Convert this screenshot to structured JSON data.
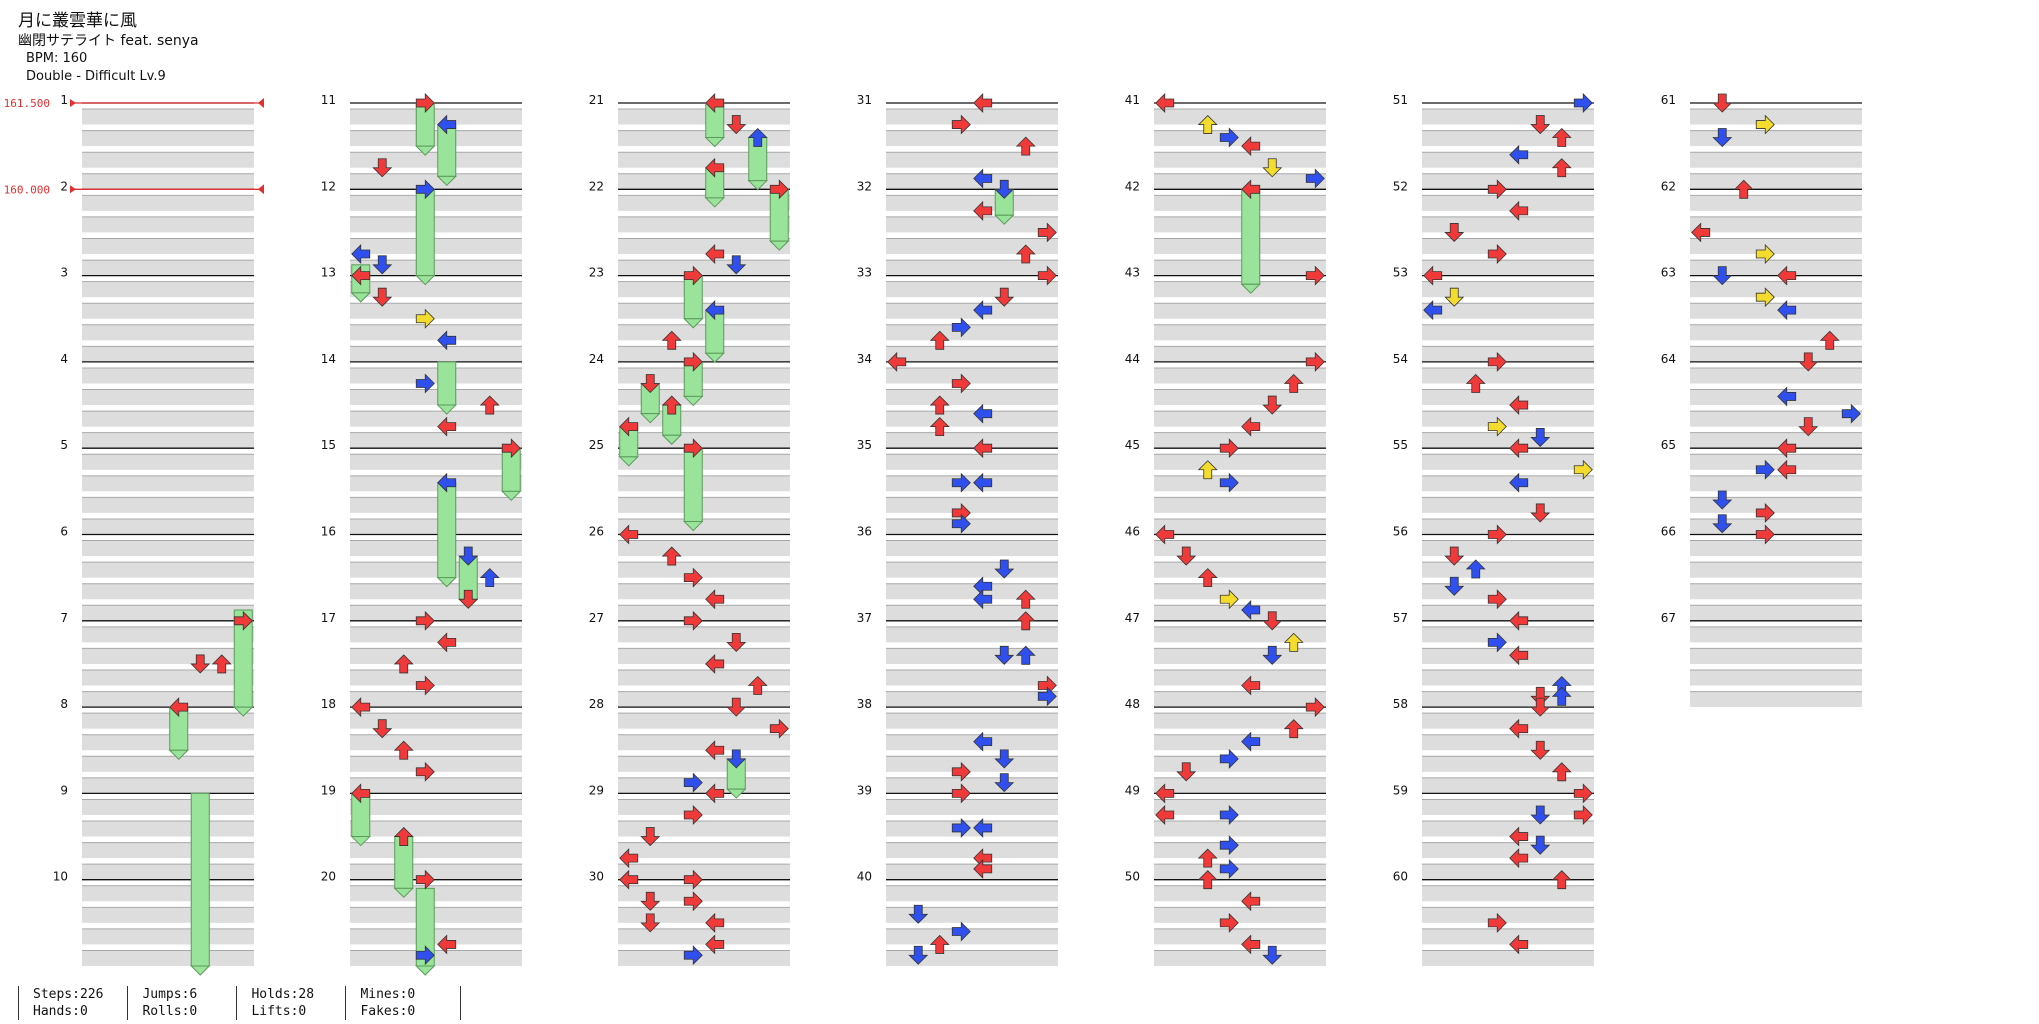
{
  "song": {
    "title": "月に叢雲華に風",
    "artist": "幽閉サテライト feat. senya",
    "bpm": "BPM: 160",
    "difficulty": "Double - Difficult Lv.9"
  },
  "bpm_changes": [
    {
      "measure": 1,
      "label": "161.500"
    },
    {
      "measure": 2,
      "label": "160.000"
    }
  ],
  "measures": {
    "first": 1,
    "last": 67,
    "per_column": 10
  },
  "colors": {
    "red": "#f03a3a",
    "blue": "#2f50ee",
    "yellow": "#f4dc2e",
    "hold": "#9ae39a",
    "lane": "#dddddd",
    "bpm_line": "#e03030"
  },
  "stats": [
    {
      "a": "Steps:226",
      "b": "Hands:0"
    },
    {
      "a": "Jumps:6",
      "b": "Rolls:0"
    },
    {
      "a": "Holds:28",
      "b": "Lifts:0"
    },
    {
      "a": "Mines:0",
      "b": "Fakes:0"
    }
  ],
  "chart_data": {
    "type": "table",
    "columns": [
      "P1 Left",
      "P1 Down",
      "P1 Up",
      "P1 Right",
      "P2 Left",
      "P2 Down",
      "P2 Up",
      "P2 Right"
    ],
    "note_colors": {
      "R": "4th",
      "B": "8th",
      "Y": "16th"
    },
    "notes": [
      [
        7,
        0,
        7,
        "R"
      ],
      [
        7.5,
        0,
        6,
        "R"
      ],
      [
        7.5,
        0,
        5,
        "R"
      ],
      [
        8,
        0,
        4,
        "R"
      ],
      [
        11,
        0,
        3,
        "R"
      ],
      [
        11.25,
        0,
        4,
        "B"
      ],
      [
        11.75,
        0,
        1,
        "R"
      ],
      [
        12,
        0,
        3,
        "B"
      ],
      [
        12.75,
        0,
        0,
        "B"
      ],
      [
        12.875,
        0,
        1,
        "B"
      ],
      [
        13,
        0,
        0,
        "R"
      ],
      [
        13.25,
        0,
        1,
        "R"
      ],
      [
        13.5,
        0,
        3,
        "Y"
      ],
      [
        13.75,
        0,
        4,
        "B"
      ],
      [
        14.25,
        0,
        3,
        "B"
      ],
      [
        14.5,
        0,
        6,
        "R"
      ],
      [
        14.75,
        0,
        4,
        "R"
      ],
      [
        15,
        0,
        7,
        "R"
      ],
      [
        15.4,
        0,
        4,
        "B"
      ],
      [
        16.25,
        0,
        5,
        "B"
      ],
      [
        16.5,
        0,
        6,
        "B"
      ],
      [
        16.75,
        0,
        5,
        "R"
      ],
      [
        17,
        0,
        3,
        "R"
      ],
      [
        17.25,
        0,
        4,
        "R"
      ],
      [
        17.5,
        0,
        2,
        "R"
      ],
      [
        17.75,
        0,
        3,
        "R"
      ],
      [
        18,
        0,
        0,
        "R"
      ],
      [
        18.25,
        0,
        1,
        "R"
      ],
      [
        18.5,
        0,
        2,
        "R"
      ],
      [
        18.75,
        0,
        3,
        "R"
      ],
      [
        19,
        0,
        0,
        "R"
      ],
      [
        19.5,
        0,
        2,
        "R"
      ],
      [
        20,
        0,
        3,
        "R"
      ],
      [
        20.75,
        0,
        4,
        "R"
      ],
      [
        20.875,
        0,
        3,
        "B"
      ],
      [
        21,
        0,
        4,
        "R"
      ],
      [
        21.25,
        0,
        5,
        "R"
      ],
      [
        21.4,
        0,
        6,
        "B"
      ],
      [
        21.75,
        0,
        4,
        "R"
      ],
      [
        22,
        0,
        7,
        "R"
      ],
      [
        22.75,
        0,
        4,
        "R"
      ],
      [
        22.875,
        0,
        5,
        "B"
      ],
      [
        23,
        0,
        3,
        "R"
      ],
      [
        23.4,
        0,
        4,
        "B"
      ],
      [
        23.75,
        0,
        2,
        "R"
      ],
      [
        24,
        0,
        3,
        "R"
      ],
      [
        24.25,
        0,
        1,
        "R"
      ],
      [
        24.5,
        0,
        2,
        "R"
      ],
      [
        24.75,
        0,
        0,
        "R"
      ],
      [
        25,
        0,
        3,
        "R"
      ],
      [
        26,
        0,
        0,
        "R"
      ],
      [
        26.25,
        0,
        2,
        "R"
      ],
      [
        26.5,
        0,
        3,
        "R"
      ],
      [
        26.75,
        0,
        4,
        "R"
      ],
      [
        27,
        0,
        3,
        "R"
      ],
      [
        27.25,
        0,
        5,
        "R"
      ],
      [
        27.5,
        0,
        4,
        "R"
      ],
      [
        27.75,
        0,
        6,
        "R"
      ],
      [
        28,
        0,
        5,
        "R"
      ],
      [
        28.25,
        0,
        7,
        "R"
      ],
      [
        28.5,
        0,
        4,
        "R"
      ],
      [
        28.6,
        0,
        5,
        "B"
      ],
      [
        28.875,
        0,
        3,
        "B"
      ],
      [
        29,
        0,
        4,
        "R"
      ],
      [
        29.25,
        0,
        3,
        "R"
      ],
      [
        29.5,
        0,
        1,
        "R"
      ],
      [
        29.75,
        0,
        0,
        "R"
      ],
      [
        30,
        0,
        0,
        "R"
      ],
      [
        30,
        0,
        3,
        "R"
      ],
      [
        30.25,
        0,
        1,
        "R"
      ],
      [
        30.25,
        0,
        3,
        "R"
      ],
      [
        30.5,
        0,
        1,
        "R"
      ],
      [
        30.5,
        0,
        4,
        "R"
      ],
      [
        30.75,
        0,
        4,
        "R"
      ],
      [
        30.875,
        0,
        3,
        "B"
      ],
      [
        31,
        0,
        4,
        "R"
      ],
      [
        31.25,
        0,
        3,
        "R"
      ],
      [
        31.5,
        0,
        6,
        "R"
      ],
      [
        31.875,
        0,
        4,
        "B"
      ],
      [
        32,
        0,
        5,
        "B"
      ],
      [
        32.25,
        0,
        4,
        "R"
      ],
      [
        32.5,
        0,
        7,
        "R"
      ],
      [
        32.75,
        0,
        6,
        "R"
      ],
      [
        33,
        0,
        7,
        "R"
      ],
      [
        33.25,
        0,
        5,
        "R"
      ],
      [
        33.4,
        0,
        4,
        "B"
      ],
      [
        33.6,
        0,
        3,
        "B"
      ],
      [
        33.75,
        0,
        2,
        "R"
      ],
      [
        34,
        0,
        0,
        "R"
      ],
      [
        34.25,
        0,
        3,
        "R"
      ],
      [
        34.5,
        0,
        2,
        "R"
      ],
      [
        34.6,
        0,
        4,
        "B"
      ],
      [
        34.75,
        0,
        2,
        "R"
      ],
      [
        35,
        0,
        4,
        "R"
      ],
      [
        35.4,
        0,
        3,
        "B"
      ],
      [
        35.4,
        0,
        4,
        "B"
      ],
      [
        35.75,
        0,
        3,
        "R"
      ],
      [
        35.875,
        0,
        3,
        "B"
      ],
      [
        36.4,
        0,
        5,
        "B"
      ],
      [
        36.6,
        0,
        4,
        "B"
      ],
      [
        36.75,
        0,
        4,
        "B"
      ],
      [
        36.75,
        0,
        6,
        "R"
      ],
      [
        37,
        0,
        6,
        "R"
      ],
      [
        37.4,
        0,
        5,
        "B"
      ],
      [
        37.4,
        0,
        6,
        "B"
      ],
      [
        37.75,
        0,
        7,
        "R"
      ],
      [
        37.875,
        0,
        7,
        "B"
      ],
      [
        38.4,
        0,
        4,
        "B"
      ],
      [
        38.6,
        0,
        5,
        "B"
      ],
      [
        38.75,
        0,
        3,
        "R"
      ],
      [
        38.875,
        0,
        5,
        "B"
      ],
      [
        39,
        0,
        3,
        "R"
      ],
      [
        39.4,
        0,
        3,
        "B"
      ],
      [
        39.4,
        0,
        4,
        "B"
      ],
      [
        39.75,
        0,
        4,
        "R"
      ],
      [
        39.875,
        0,
        4,
        "R"
      ],
      [
        40.4,
        0,
        1,
        "B"
      ],
      [
        40.6,
        0,
        3,
        "B"
      ],
      [
        40.75,
        0,
        2,
        "R"
      ],
      [
        40.875,
        0,
        1,
        "B"
      ],
      [
        41,
        0,
        0,
        "R"
      ],
      [
        41.25,
        0,
        2,
        "Y"
      ],
      [
        41.4,
        0,
        3,
        "B"
      ],
      [
        41.5,
        0,
        4,
        "R"
      ],
      [
        41.75,
        0,
        5,
        "Y"
      ],
      [
        41.875,
        0,
        7,
        "B"
      ],
      [
        42,
        0,
        4,
        "R"
      ],
      [
        43,
        0,
        7,
        "R"
      ],
      [
        44,
        0,
        7,
        "R"
      ],
      [
        44.25,
        0,
        6,
        "R"
      ],
      [
        44.5,
        0,
        5,
        "R"
      ],
      [
        44.75,
        0,
        4,
        "R"
      ],
      [
        45,
        0,
        3,
        "R"
      ],
      [
        45.25,
        0,
        2,
        "Y"
      ],
      [
        45.4,
        0,
        3,
        "B"
      ],
      [
        46,
        0,
        0,
        "R"
      ],
      [
        46.25,
        0,
        1,
        "R"
      ],
      [
        46.5,
        0,
        2,
        "R"
      ],
      [
        46.75,
        0,
        3,
        "Y"
      ],
      [
        46.875,
        0,
        4,
        "B"
      ],
      [
        47,
        0,
        5,
        "R"
      ],
      [
        47.25,
        0,
        6,
        "Y"
      ],
      [
        47.4,
        0,
        5,
        "B"
      ],
      [
        47.75,
        0,
        4,
        "R"
      ],
      [
        48,
        0,
        7,
        "R"
      ],
      [
        48.25,
        0,
        6,
        "R"
      ],
      [
        48.4,
        0,
        4,
        "B"
      ],
      [
        48.6,
        0,
        3,
        "B"
      ],
      [
        48.75,
        0,
        1,
        "R"
      ],
      [
        49,
        0,
        0,
        "R"
      ],
      [
        49.25,
        0,
        0,
        "R"
      ],
      [
        49.25,
        0,
        3,
        "B"
      ],
      [
        49.6,
        0,
        3,
        "B"
      ],
      [
        49.75,
        0,
        2,
        "R"
      ],
      [
        49.875,
        0,
        3,
        "B"
      ],
      [
        50,
        0,
        2,
        "R"
      ],
      [
        50.25,
        0,
        4,
        "R"
      ],
      [
        50.5,
        0,
        3,
        "R"
      ],
      [
        50.75,
        0,
        4,
        "R"
      ],
      [
        50.875,
        0,
        5,
        "B"
      ],
      [
        51,
        0,
        7,
        "B"
      ],
      [
        51.25,
        0,
        5,
        "R"
      ],
      [
        51.4,
        0,
        6,
        "R"
      ],
      [
        51.6,
        0,
        4,
        "B"
      ],
      [
        51.75,
        0,
        6,
        "R"
      ],
      [
        52,
        0,
        3,
        "R"
      ],
      [
        52.25,
        0,
        4,
        "R"
      ],
      [
        52.5,
        0,
        1,
        "R"
      ],
      [
        52.75,
        0,
        3,
        "R"
      ],
      [
        53,
        0,
        0,
        "R"
      ],
      [
        53.25,
        0,
        1,
        "Y"
      ],
      [
        53.4,
        0,
        0,
        "B"
      ],
      [
        54,
        0,
        3,
        "R"
      ],
      [
        54.25,
        0,
        2,
        "R"
      ],
      [
        54.5,
        0,
        4,
        "R"
      ],
      [
        54.75,
        0,
        3,
        "Y"
      ],
      [
        54.875,
        0,
        5,
        "B"
      ],
      [
        55,
        0,
        4,
        "R"
      ],
      [
        55.25,
        0,
        7,
        "Y"
      ],
      [
        55.4,
        0,
        4,
        "B"
      ],
      [
        55.75,
        0,
        5,
        "R"
      ],
      [
        56,
        0,
        3,
        "R"
      ],
      [
        56.25,
        0,
        1,
        "R"
      ],
      [
        56.4,
        0,
        2,
        "B"
      ],
      [
        56.6,
        0,
        1,
        "B"
      ],
      [
        56.75,
        0,
        3,
        "R"
      ],
      [
        57,
        0,
        4,
        "R"
      ],
      [
        57.25,
        0,
        3,
        "B"
      ],
      [
        57.4,
        0,
        4,
        "R"
      ],
      [
        57.75,
        0,
        6,
        "B"
      ],
      [
        57.875,
        0,
        5,
        "R"
      ],
      [
        57.875,
        0,
        6,
        "B"
      ],
      [
        58,
        0,
        5,
        "R"
      ],
      [
        58.25,
        0,
        4,
        "R"
      ],
      [
        58.5,
        0,
        5,
        "R"
      ],
      [
        58.75,
        0,
        6,
        "R"
      ],
      [
        59,
        0,
        7,
        "R"
      ],
      [
        59.25,
        0,
        5,
        "B"
      ],
      [
        59.25,
        0,
        7,
        "R"
      ],
      [
        59.5,
        0,
        4,
        "R"
      ],
      [
        59.6,
        0,
        5,
        "B"
      ],
      [
        59.75,
        0,
        4,
        "R"
      ],
      [
        60,
        0,
        6,
        "R"
      ],
      [
        60.5,
        0,
        3,
        "R"
      ],
      [
        60.75,
        0,
        4,
        "R"
      ],
      [
        61,
        0,
        1,
        "R"
      ],
      [
        61.25,
        0,
        3,
        "Y"
      ],
      [
        61.4,
        0,
        1,
        "B"
      ],
      [
        62,
        0,
        2,
        "R"
      ],
      [
        62.5,
        0,
        0,
        "R"
      ],
      [
        62.75,
        0,
        3,
        "Y"
      ],
      [
        63,
        0,
        1,
        "B"
      ],
      [
        63,
        0,
        4,
        "R"
      ],
      [
        63.25,
        0,
        3,
        "Y"
      ],
      [
        63.4,
        0,
        4,
        "B"
      ],
      [
        63.75,
        0,
        6,
        "R"
      ],
      [
        64,
        0,
        5,
        "R"
      ],
      [
        64.4,
        0,
        4,
        "B"
      ],
      [
        64.6,
        0,
        7,
        "B"
      ],
      [
        64.75,
        0,
        5,
        "R"
      ],
      [
        65,
        0,
        4,
        "R"
      ],
      [
        65.25,
        0,
        4,
        "R"
      ],
      [
        65.25,
        0,
        3,
        "B"
      ],
      [
        65.6,
        0,
        1,
        "B"
      ],
      [
        65.75,
        0,
        3,
        "R"
      ],
      [
        65.875,
        0,
        1,
        "B"
      ],
      [
        66,
        0,
        3,
        "R"
      ]
    ],
    "holds": [
      [
        6.875,
        8,
        7
      ],
      [
        8,
        8.5,
        4
      ],
      [
        9,
        11,
        5
      ],
      [
        11,
        11.5,
        3
      ],
      [
        11.25,
        11.85,
        4
      ],
      [
        12,
        13,
        3
      ],
      [
        12.875,
        13.2,
        0
      ],
      [
        14,
        14.5,
        4
      ],
      [
        15,
        15.5,
        7
      ],
      [
        15.4,
        16.5,
        4
      ],
      [
        16.25,
        16.75,
        5
      ],
      [
        19,
        19.5,
        0
      ],
      [
        19.5,
        20.1,
        2
      ],
      [
        20.1,
        21,
        3
      ],
      [
        21,
        21.4,
        4
      ],
      [
        21.4,
        21.9,
        6
      ],
      [
        21.75,
        22.1,
        4
      ],
      [
        22,
        22.6,
        7
      ],
      [
        23,
        23.5,
        3
      ],
      [
        23.4,
        23.9,
        4
      ],
      [
        24,
        24.4,
        3
      ],
      [
        24.25,
        24.6,
        1
      ],
      [
        24.5,
        24.85,
        2
      ],
      [
        24.75,
        25.1,
        0
      ],
      [
        25,
        25.85,
        3
      ],
      [
        28.6,
        28.95,
        5
      ],
      [
        32,
        32.3,
        5
      ],
      [
        42,
        43.1,
        4
      ]
    ],
    "bpm_changes": [
      {
        "measure": 1,
        "bpm": 161.5
      },
      {
        "measure": 2,
        "bpm": 160.0
      }
    ]
  }
}
